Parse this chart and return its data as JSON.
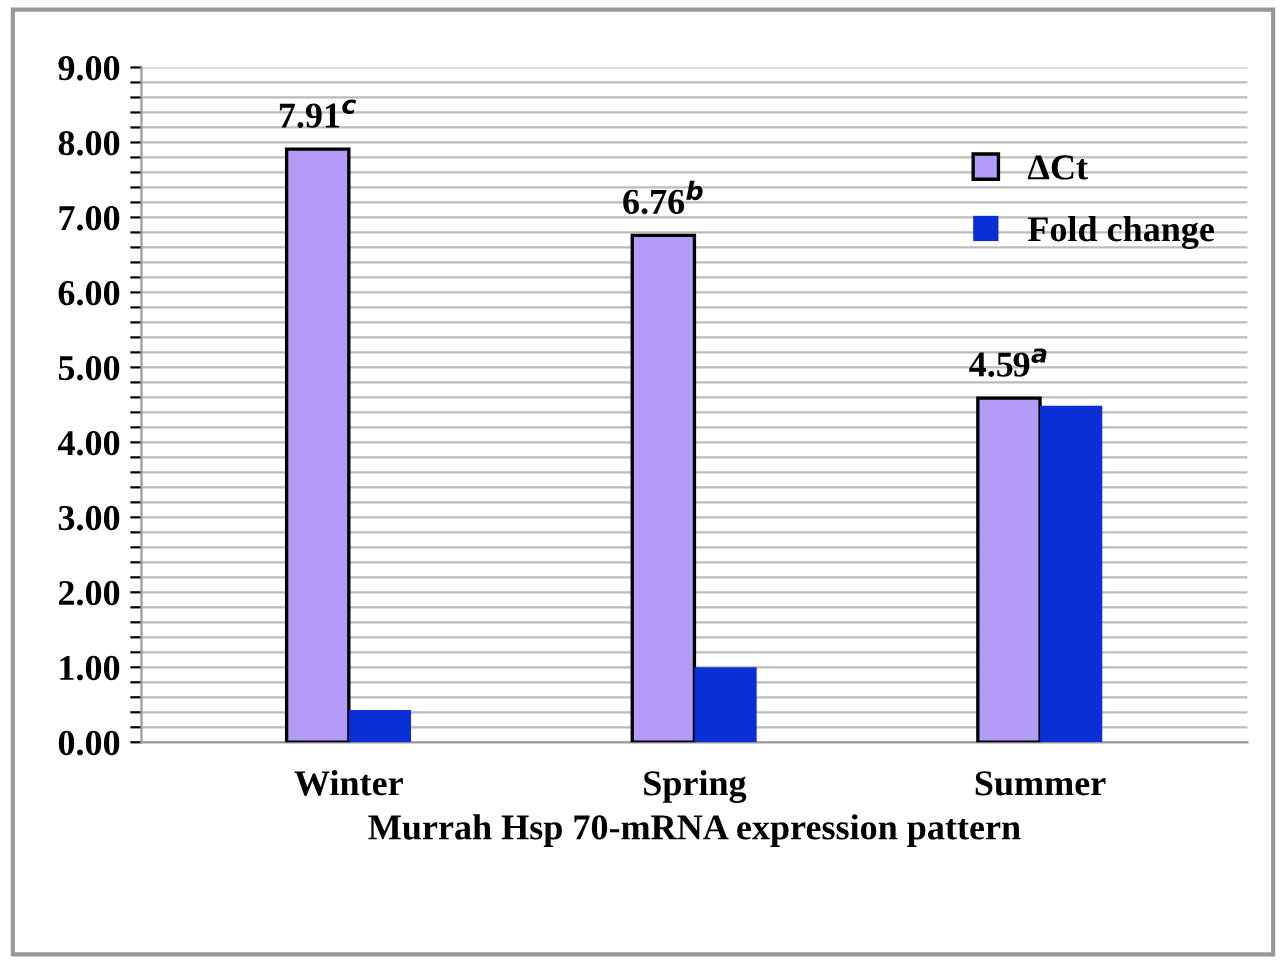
{
  "chart_data": {
    "type": "bar",
    "xlabel": "Murrah Hsp 70-mRNA expression pattern",
    "categories": [
      "Winter",
      "Spring",
      "Summer"
    ],
    "series": [
      {
        "name": "ΔCt",
        "color": "#b39cf7",
        "values": [
          7.91,
          6.76,
          4.59
        ],
        "value_labels": [
          "7.91$^{c}$",
          "6.76$^{b}$",
          "4.59$^{a}$"
        ]
      },
      {
        "name": "Fold change",
        "color": "#0a2fd6",
        "values": [
          0.43,
          1.0,
          4.49
        ]
      }
    ],
    "ylim": [
      0,
      9
    ],
    "yticks": [
      {
        "value": 0,
        "label": "0.00"
      },
      {
        "value": 0.2,
        "label": null
      },
      {
        "value": 0.4,
        "label": null
      },
      {
        "value": 0.6,
        "label": null
      },
      {
        "value": 0.8,
        "label": null
      },
      {
        "value": 1,
        "label": "1.00"
      },
      {
        "value": 1.2,
        "label": null
      },
      {
        "value": 1.4,
        "label": null
      },
      {
        "value": 1.6,
        "label": null
      },
      {
        "value": 1.8,
        "label": null
      },
      {
        "value": 2,
        "label": "2.00"
      },
      {
        "value": 2.2,
        "label": null
      },
      {
        "value": 2.4,
        "label": null
      },
      {
        "value": 2.6,
        "label": null
      },
      {
        "value": 2.8,
        "label": null
      },
      {
        "value": 3,
        "label": "3.00"
      },
      {
        "value": 3.2,
        "label": null
      },
      {
        "value": 3.4,
        "label": null
      },
      {
        "value": 3.6,
        "label": null
      },
      {
        "value": 3.8,
        "label": null
      },
      {
        "value": 4,
        "label": "4.00"
      },
      {
        "value": 4.2,
        "label": null
      },
      {
        "value": 4.4,
        "label": null
      },
      {
        "value": 4.6,
        "label": null
      },
      {
        "value": 4.8,
        "label": null
      },
      {
        "value": 5,
        "label": "5.00"
      },
      {
        "value": 5.2,
        "label": null
      },
      {
        "value": 5.4,
        "label": null
      },
      {
        "value": 5.6,
        "label": null
      },
      {
        "value": 5.8,
        "label": null
      },
      {
        "value": 6,
        "label": "6.00"
      },
      {
        "value": 6.2,
        "label": null
      },
      {
        "value": 6.4,
        "label": null
      },
      {
        "value": 6.6,
        "label": null
      },
      {
        "value": 6.8,
        "label": null
      },
      {
        "value": 7,
        "label": "7.00"
      },
      {
        "value": 7.2,
        "label": null
      },
      {
        "value": 7.4,
        "label": null
      },
      {
        "value": 7.6,
        "label": null
      },
      {
        "value": 7.8,
        "label": null
      },
      {
        "value": 8,
        "label": "8.00"
      },
      {
        "value": 8.2,
        "label": null
      },
      {
        "value": 8.4,
        "label": null
      },
      {
        "value": 8.6,
        "label": null
      },
      {
        "value": 8.8,
        "label": null
      },
      {
        "value": 9,
        "label": "9.00"
      }
    ],
    "grid": "y",
    "legend": "top right"
  }
}
